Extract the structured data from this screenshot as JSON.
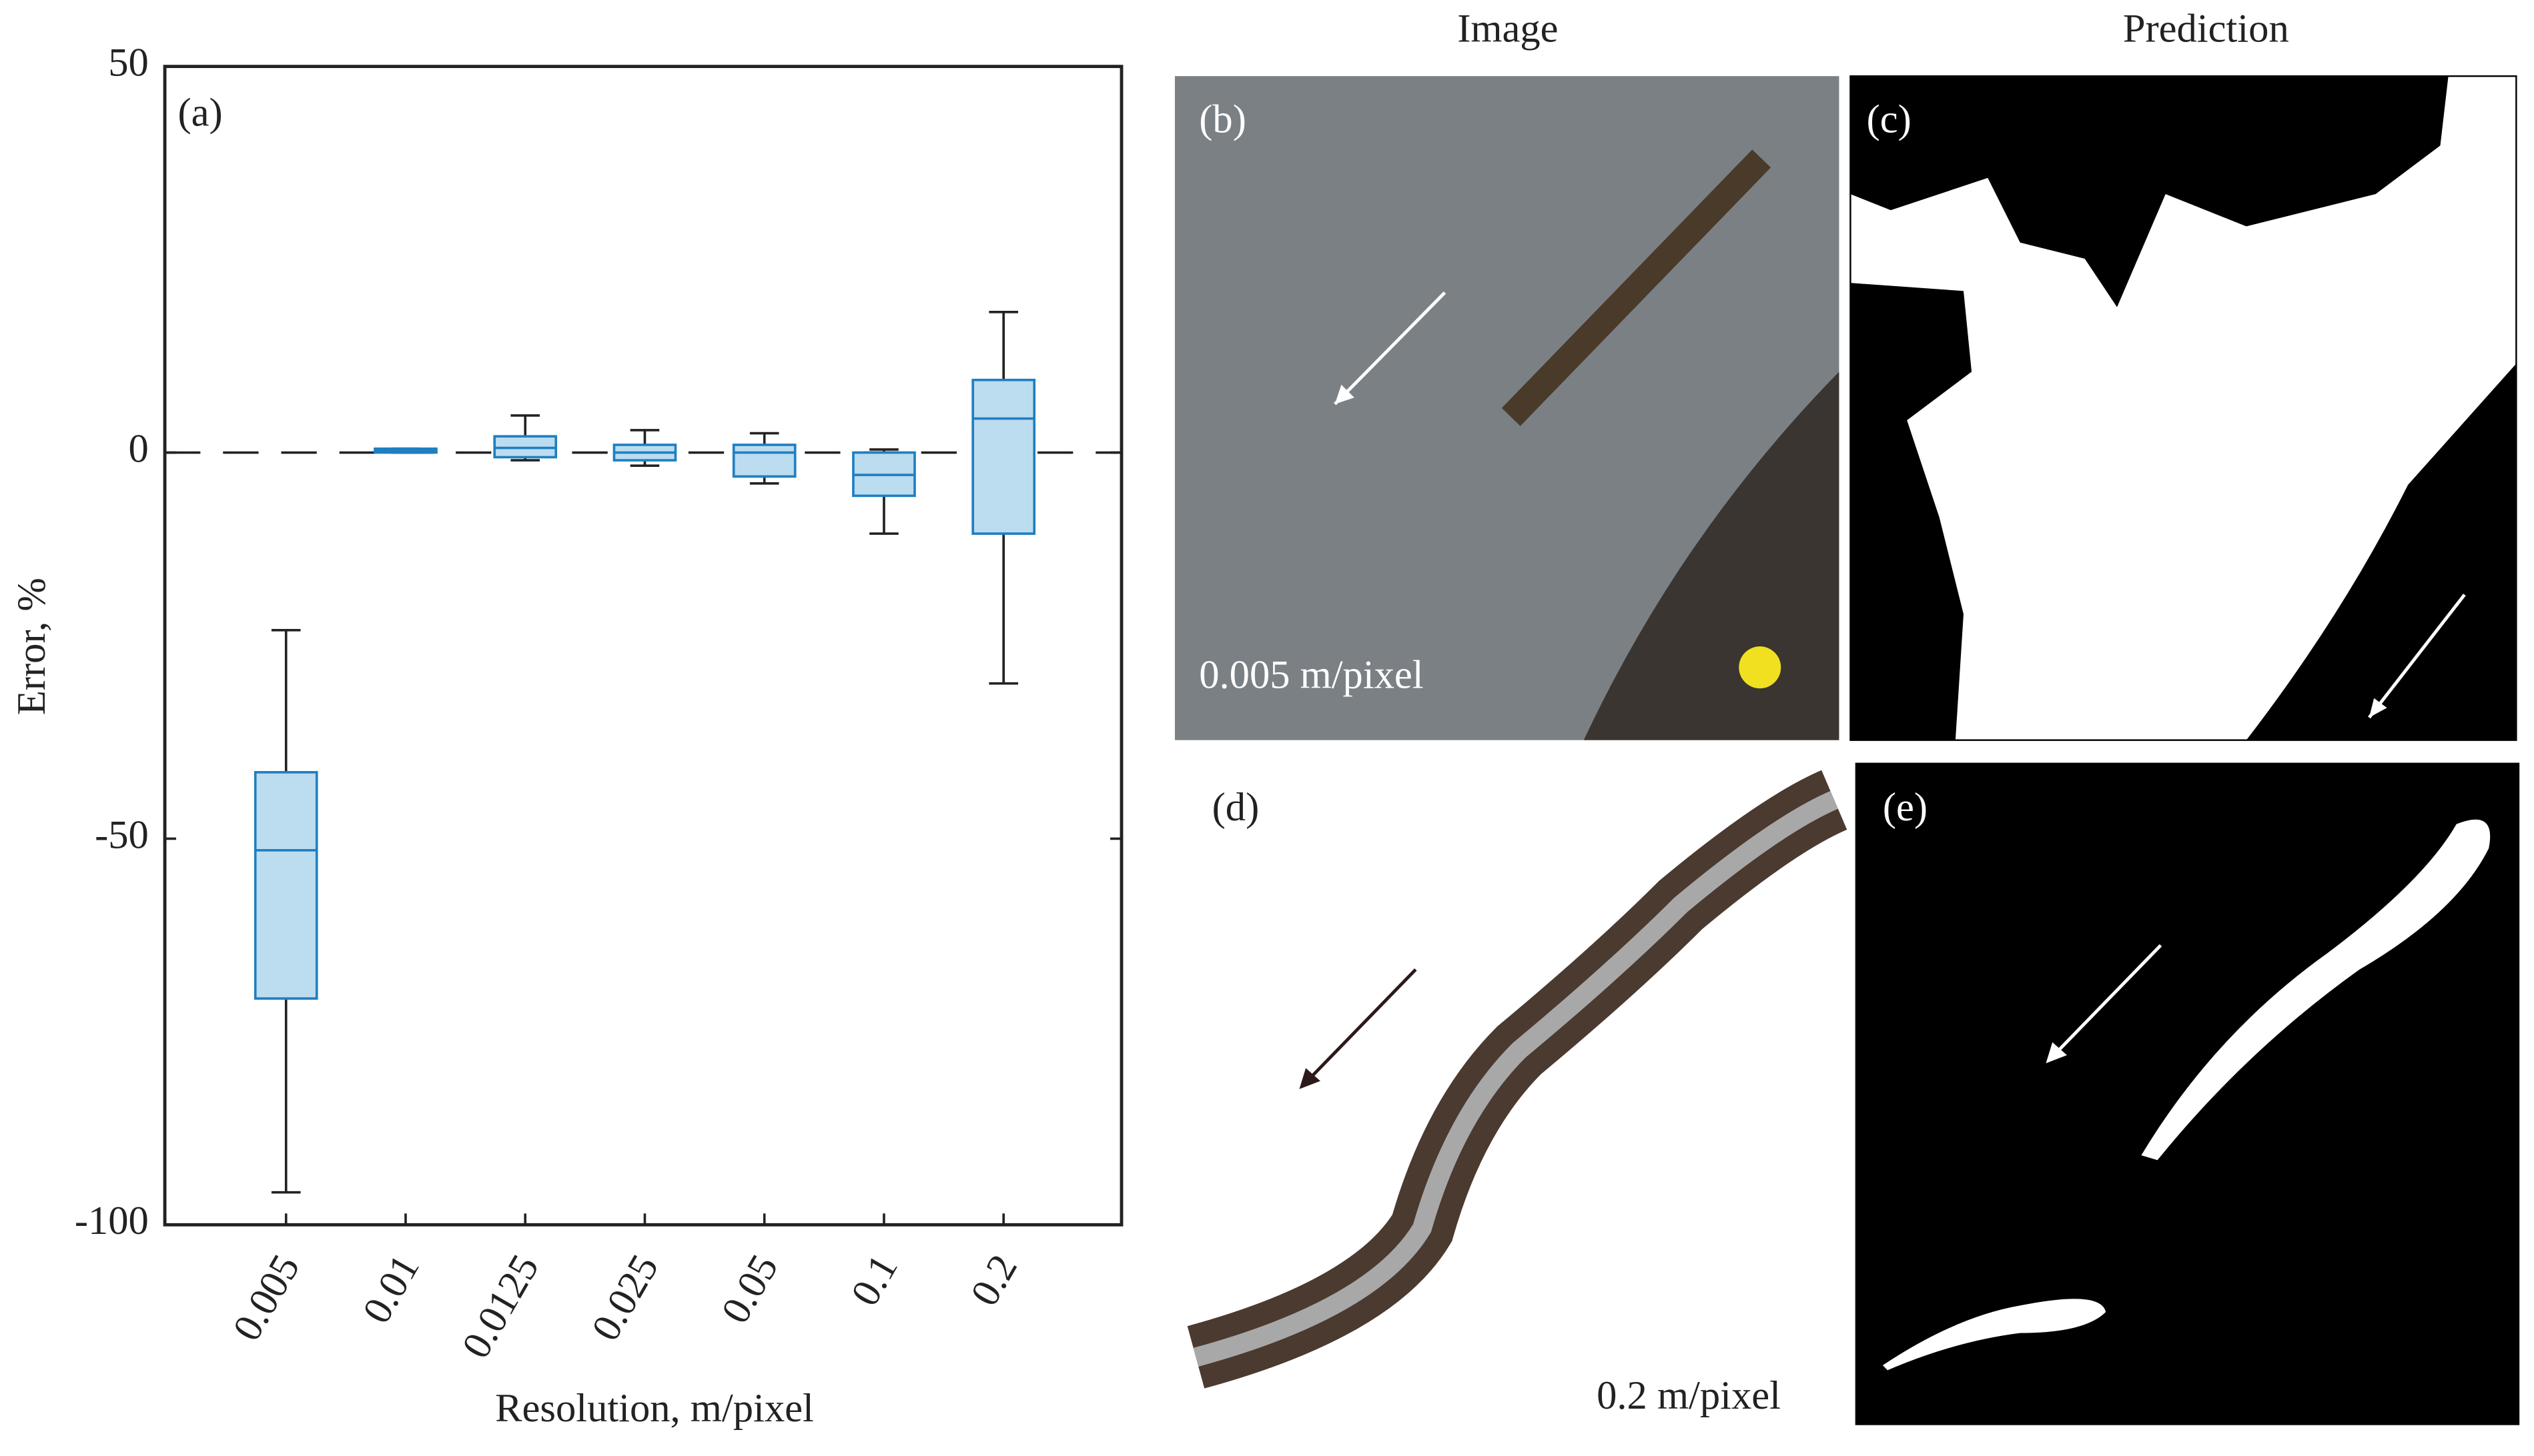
{
  "chart_data": {
    "type": "box",
    "panel_label": "(a)",
    "x_label": "Resolution, m/pixel",
    "y_label": "Error, %",
    "categories": [
      "0.005",
      "0.01",
      "0.0125",
      "0.025",
      "0.05",
      "0.1",
      "0.2"
    ],
    "min": [
      -95.8,
      0,
      -1,
      -1.7,
      -4,
      -10.5,
      -29.9
    ],
    "q1": [
      -70.7,
      0,
      -0.6,
      -1,
      -3.1,
      -5.6,
      -10.5
    ],
    "median": [
      -51.5,
      0.2,
      0.6,
      0,
      0,
      -2.9,
      4.4
    ],
    "q3": [
      -41.4,
      0.5,
      2.1,
      1,
      1,
      0,
      9.4
    ],
    "max": [
      -23,
      0.5,
      4.8,
      2.9,
      2.5,
      0.4,
      18.2
    ],
    "color": "#bcdcf0",
    "edge_color": "#1f7fc0",
    "ylim": [
      -100,
      50
    ],
    "yticks": [
      50,
      0,
      -50,
      -100
    ],
    "hline": 0
  },
  "panels": {
    "col_titles": [
      "Image",
      "Prediction"
    ],
    "labels": [
      "(b)",
      "(c)",
      "(d)",
      "(e)"
    ],
    "resolutions": [
      "0.005 m/pixel",
      "0.2 m/pixel"
    ]
  }
}
